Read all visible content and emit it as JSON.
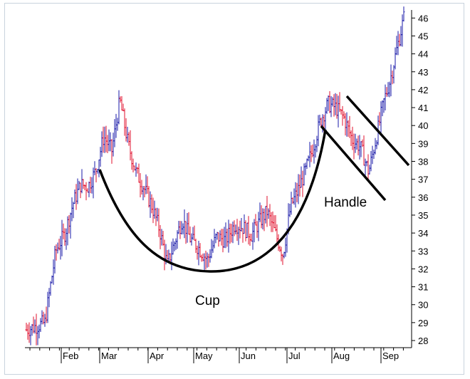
{
  "chart_data": {
    "type": "bar",
    "subtype": "ohlc",
    "title": "",
    "xlabel": "",
    "ylabel": "",
    "ylim": [
      27.5,
      46.5
    ],
    "grid": false,
    "legend": "none",
    "y_ticks": [
      28,
      29,
      30,
      31,
      32,
      33,
      34,
      35,
      36,
      37,
      38,
      39,
      40,
      41,
      42,
      43,
      44,
      45,
      46
    ],
    "x_ticks": [
      "Feb",
      "Mar",
      "Apr",
      "May",
      "Jun",
      "Jul",
      "Aug",
      "Sep"
    ],
    "colors": {
      "up": "#1a1aa8",
      "down": "#e0102e",
      "pattern": "#000000",
      "axis": "#000000"
    },
    "annotations": [
      {
        "text": "Cup",
        "x": "May",
        "y": 30.9
      },
      {
        "text": "Handle",
        "x": "Aug",
        "y": 35.8
      }
    ],
    "price_path": [
      [
        "Jan",
        28.6
      ],
      [
        "Jan",
        29.0
      ],
      [
        "Jan",
        33.0
      ],
      [
        "Feb",
        34.0
      ],
      [
        "Feb",
        35.6
      ],
      [
        "Feb",
        36.7
      ],
      [
        "Feb",
        36.6
      ],
      [
        "Feb",
        37.5
      ],
      [
        "Mar",
        39.4
      ],
      [
        "Mar",
        38.6
      ],
      [
        "Mar",
        41.4
      ],
      [
        "Mar",
        39.0
      ],
      [
        "Mar",
        37.4
      ],
      [
        "Mar",
        36.5
      ],
      [
        "Apr",
        35.5
      ],
      [
        "Apr",
        34.2
      ],
      [
        "Apr",
        32.2
      ],
      [
        "Apr",
        33.5
      ],
      [
        "Apr",
        34.8
      ],
      [
        "Apr",
        33.7
      ],
      [
        "May",
        33.2
      ],
      [
        "May",
        32.5
      ],
      [
        "May",
        33.8
      ],
      [
        "May",
        33.6
      ],
      [
        "May",
        34.5
      ],
      [
        "Jun",
        34.3
      ],
      [
        "Jun",
        33.9
      ],
      [
        "Jun",
        34.6
      ],
      [
        "Jun",
        35.2
      ],
      [
        "Jun",
        34.0
      ],
      [
        "Jun",
        32.8
      ],
      [
        "Jul",
        35.5
      ],
      [
        "Jul",
        36.4
      ],
      [
        "Jul",
        37.5
      ],
      [
        "Jul",
        38.8
      ],
      [
        "Jul",
        40.3
      ],
      [
        "Jul",
        41.2
      ],
      [
        "Aug",
        41.0
      ],
      [
        "Aug",
        40.4
      ],
      [
        "Aug",
        39.2
      ],
      [
        "Aug",
        38.8
      ],
      [
        "Aug",
        37.4
      ],
      [
        "Aug",
        39.5
      ],
      [
        "Sep",
        41.4
      ],
      [
        "Sep",
        42.6
      ],
      [
        "Sep",
        44.2
      ],
      [
        "Sep",
        46.0
      ]
    ]
  }
}
